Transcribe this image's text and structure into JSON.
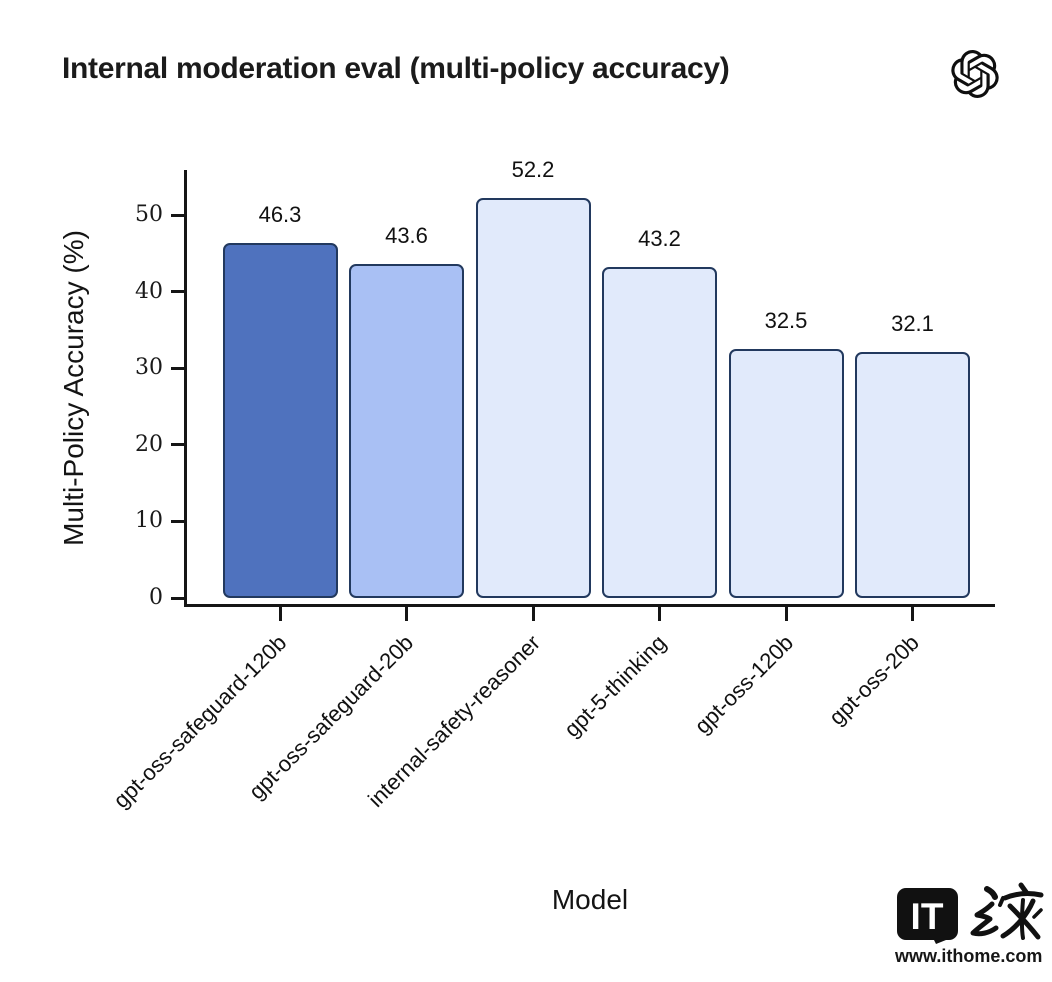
{
  "header": {
    "title": "Internal moderation eval (multi-policy accuracy)",
    "logo_icon": "openai-logo"
  },
  "chart_data": {
    "type": "bar",
    "title": "Internal moderation eval (multi-policy accuracy)",
    "categories": [
      "gpt-oss-safeguard-120b",
      "gpt-oss-safeguard-20b",
      "internal-safety-reasoner",
      "gpt-5-thinking",
      "gpt-oss-120b",
      "gpt-oss-20b"
    ],
    "values": [
      46.3,
      43.6,
      52.2,
      43.2,
      32.5,
      32.1
    ],
    "value_labels": [
      "46.3",
      "43.6",
      "52.2",
      "43.2",
      "32.5",
      "32.1"
    ],
    "xlabel": "Model",
    "ylabel": "Multi-Policy Accuracy (%)",
    "yticks": [
      0,
      10,
      20,
      30,
      40,
      50
    ],
    "ylim": [
      0,
      56
    ],
    "grid": false,
    "legend": "none",
    "bar_colors": [
      "#4F72BE",
      "#A9C0F4",
      "#E1EAFB",
      "#E1EAFB",
      "#E1EAFB",
      "#E1EAFB"
    ],
    "bar_border_color": "#22395E",
    "axis_color": "#151515"
  },
  "watermark": {
    "bubble_text": "IT",
    "cjk_text_name": "zhijia-calligraphy",
    "url": "www.ithome.com"
  }
}
